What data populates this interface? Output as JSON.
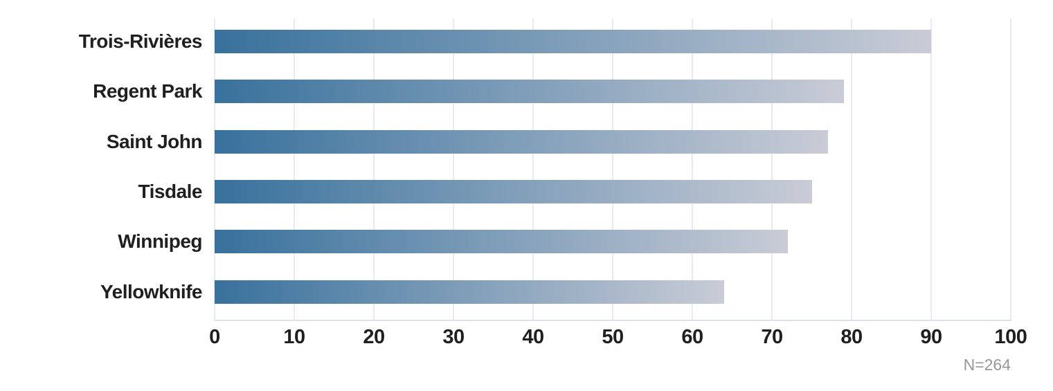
{
  "chart_data": {
    "type": "bar",
    "orientation": "horizontal",
    "title": "",
    "xlabel": "",
    "ylabel": "",
    "categories": [
      "Trois-Rivières",
      "Regent Park",
      "Saint John",
      "Tisdale",
      "Winnipeg",
      "Yellowknife"
    ],
    "values": [
      90,
      79,
      77,
      75,
      72,
      64
    ],
    "xlim": [
      0,
      100
    ],
    "xticks": [
      0,
      10,
      20,
      30,
      40,
      50,
      60,
      70,
      80,
      90,
      100
    ],
    "grid": true,
    "legend": "none",
    "note": "N=264",
    "colors": {
      "bar_gradient_start": "#38719c",
      "bar_gradient_end": "#c9ccd6",
      "gridline": "#e7eaf5",
      "axis_line": "#dde1ec",
      "label_text": "#1f1f1f",
      "note_text": "#95979b",
      "background": "#ffffff"
    }
  }
}
